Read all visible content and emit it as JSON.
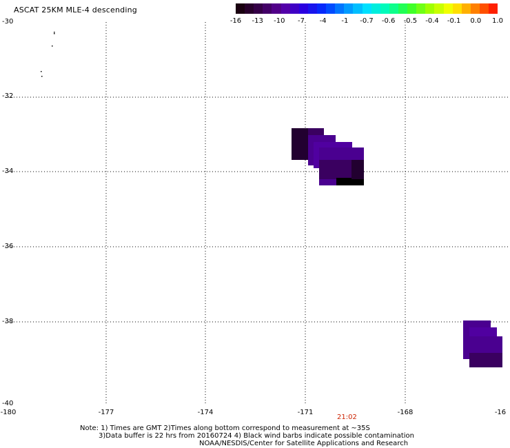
{
  "title": "ASCAT 25KM MLE-4 descending",
  "colorbar": {
    "labels": [
      "-16",
      "-13",
      "-10",
      "-7",
      "-4",
      "-1",
      "-0.7",
      "-0.6",
      "-0.5",
      "-0.4",
      "-0.1",
      "0.0",
      "1.0"
    ],
    "colors": [
      "#1a0010",
      "#3a0050",
      "#5a00a0",
      "#2a00e0",
      "#0030ff",
      "#0090ff",
      "#00e0ff",
      "#00ffb0",
      "#30ff30",
      "#a0ff00",
      "#ffff00",
      "#ff9000",
      "#ff2000"
    ]
  },
  "map": {
    "lat_labels": [
      "-30",
      "-32",
      "-34",
      "-36",
      "-38",
      "-40"
    ],
    "lon_labels": [
      "-180",
      "-177",
      "-174",
      "-171",
      "-168",
      "-16"
    ],
    "time_label": "21:02",
    "swath_colors": [
      "#220030",
      "#3a0060",
      "#4a0090",
      "#5000a0",
      "#000000"
    ]
  },
  "notes": {
    "line1": "Note: 1) Times are GMT 2)Times along bottom correspond to measurement at ~35S",
    "line2": "3)Data buffer is 22 hrs from 20160724 4) Black wind barbs indicate possible contamination",
    "line3": "NOAA/NESDIS/Center for Satellite Applications and Research"
  }
}
